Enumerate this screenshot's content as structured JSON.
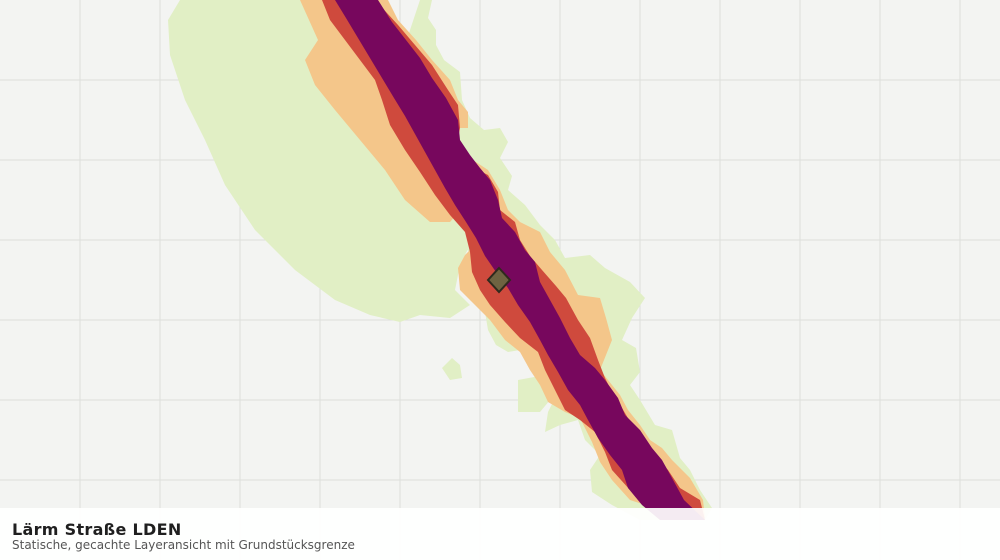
{
  "map": {
    "layer_name": "Lärm Straße LDEN",
    "layer_description": "Statische, gecachte Layeransicht mit Grundstücksgrenze",
    "colors": {
      "background": "#f3f4f2",
      "grid": "#dcdedb",
      "band_low": "#e1efc5",
      "band_mid": "#f4c68a",
      "band_high": "#cf4a3d",
      "band_very_high": "#77075d",
      "marker_fill": "#6e6341",
      "marker_stroke": "#2f2a1d"
    },
    "marker_icon": "parcel-boundary-diamond"
  }
}
